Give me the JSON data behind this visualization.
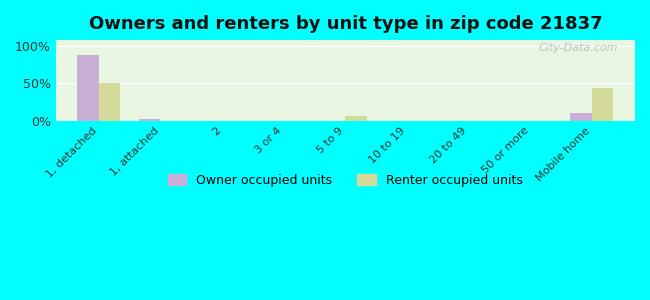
{
  "title": "Owners and renters by unit type in zip code 21837",
  "categories": [
    "1, detached",
    "1, attached",
    "2",
    "3 or 4",
    "5 to 9",
    "10 to 19",
    "20 to 49",
    "50 or more",
    "Mobile home"
  ],
  "owner_values": [
    88,
    2,
    0,
    0,
    0,
    0,
    0,
    0,
    10
  ],
  "renter_values": [
    51,
    0,
    0,
    0,
    6,
    0,
    0,
    0,
    44
  ],
  "owner_color": "#c9aed6",
  "renter_color": "#d4db9a",
  "background_outer": "#00ffff",
  "background_inner_top": "#e8f5e0",
  "background_inner_bottom": "#f5faf0",
  "yticks": [
    0,
    50,
    100
  ],
  "ylabels": [
    "0%",
    "50%",
    "100%"
  ],
  "ylim": [
    0,
    108
  ],
  "watermark": "City-Data.com",
  "legend_owner": "Owner occupied units",
  "legend_renter": "Renter occupied units"
}
